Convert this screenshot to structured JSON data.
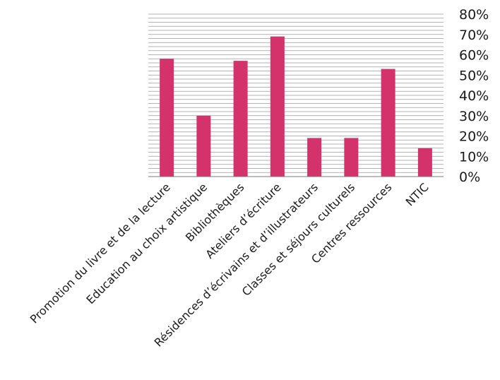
{
  "chart_data": {
    "type": "bar",
    "title": "",
    "xlabel": "",
    "ylabel": "",
    "categories": [
      "Promotion du livre et de la lecture",
      "Education au choix artistique",
      "Bibliothèques",
      "Ateliers d’écriture",
      "Résidences d’écrivains et d’illustrateurs",
      "Classes et séjours culturels",
      "Centres ressources",
      "NTIC"
    ],
    "values": [
      0.58,
      0.3,
      0.57,
      0.69,
      0.19,
      0.19,
      0.53,
      0.14
    ],
    "ylim": [
      0,
      0.8
    ],
    "yticks": [
      0,
      0.1,
      0.2,
      0.3,
      0.4,
      0.5,
      0.6,
      0.7,
      0.8
    ],
    "ytick_labels": [
      "0%",
      "10%",
      "20%",
      "30%",
      "40%",
      "50%",
      "60%",
      "70%",
      "80%"
    ],
    "y_axis_side": "right",
    "minor_grid_per_major": 5,
    "bar_color": "#d4326b",
    "grid": true,
    "legend": "none"
  }
}
